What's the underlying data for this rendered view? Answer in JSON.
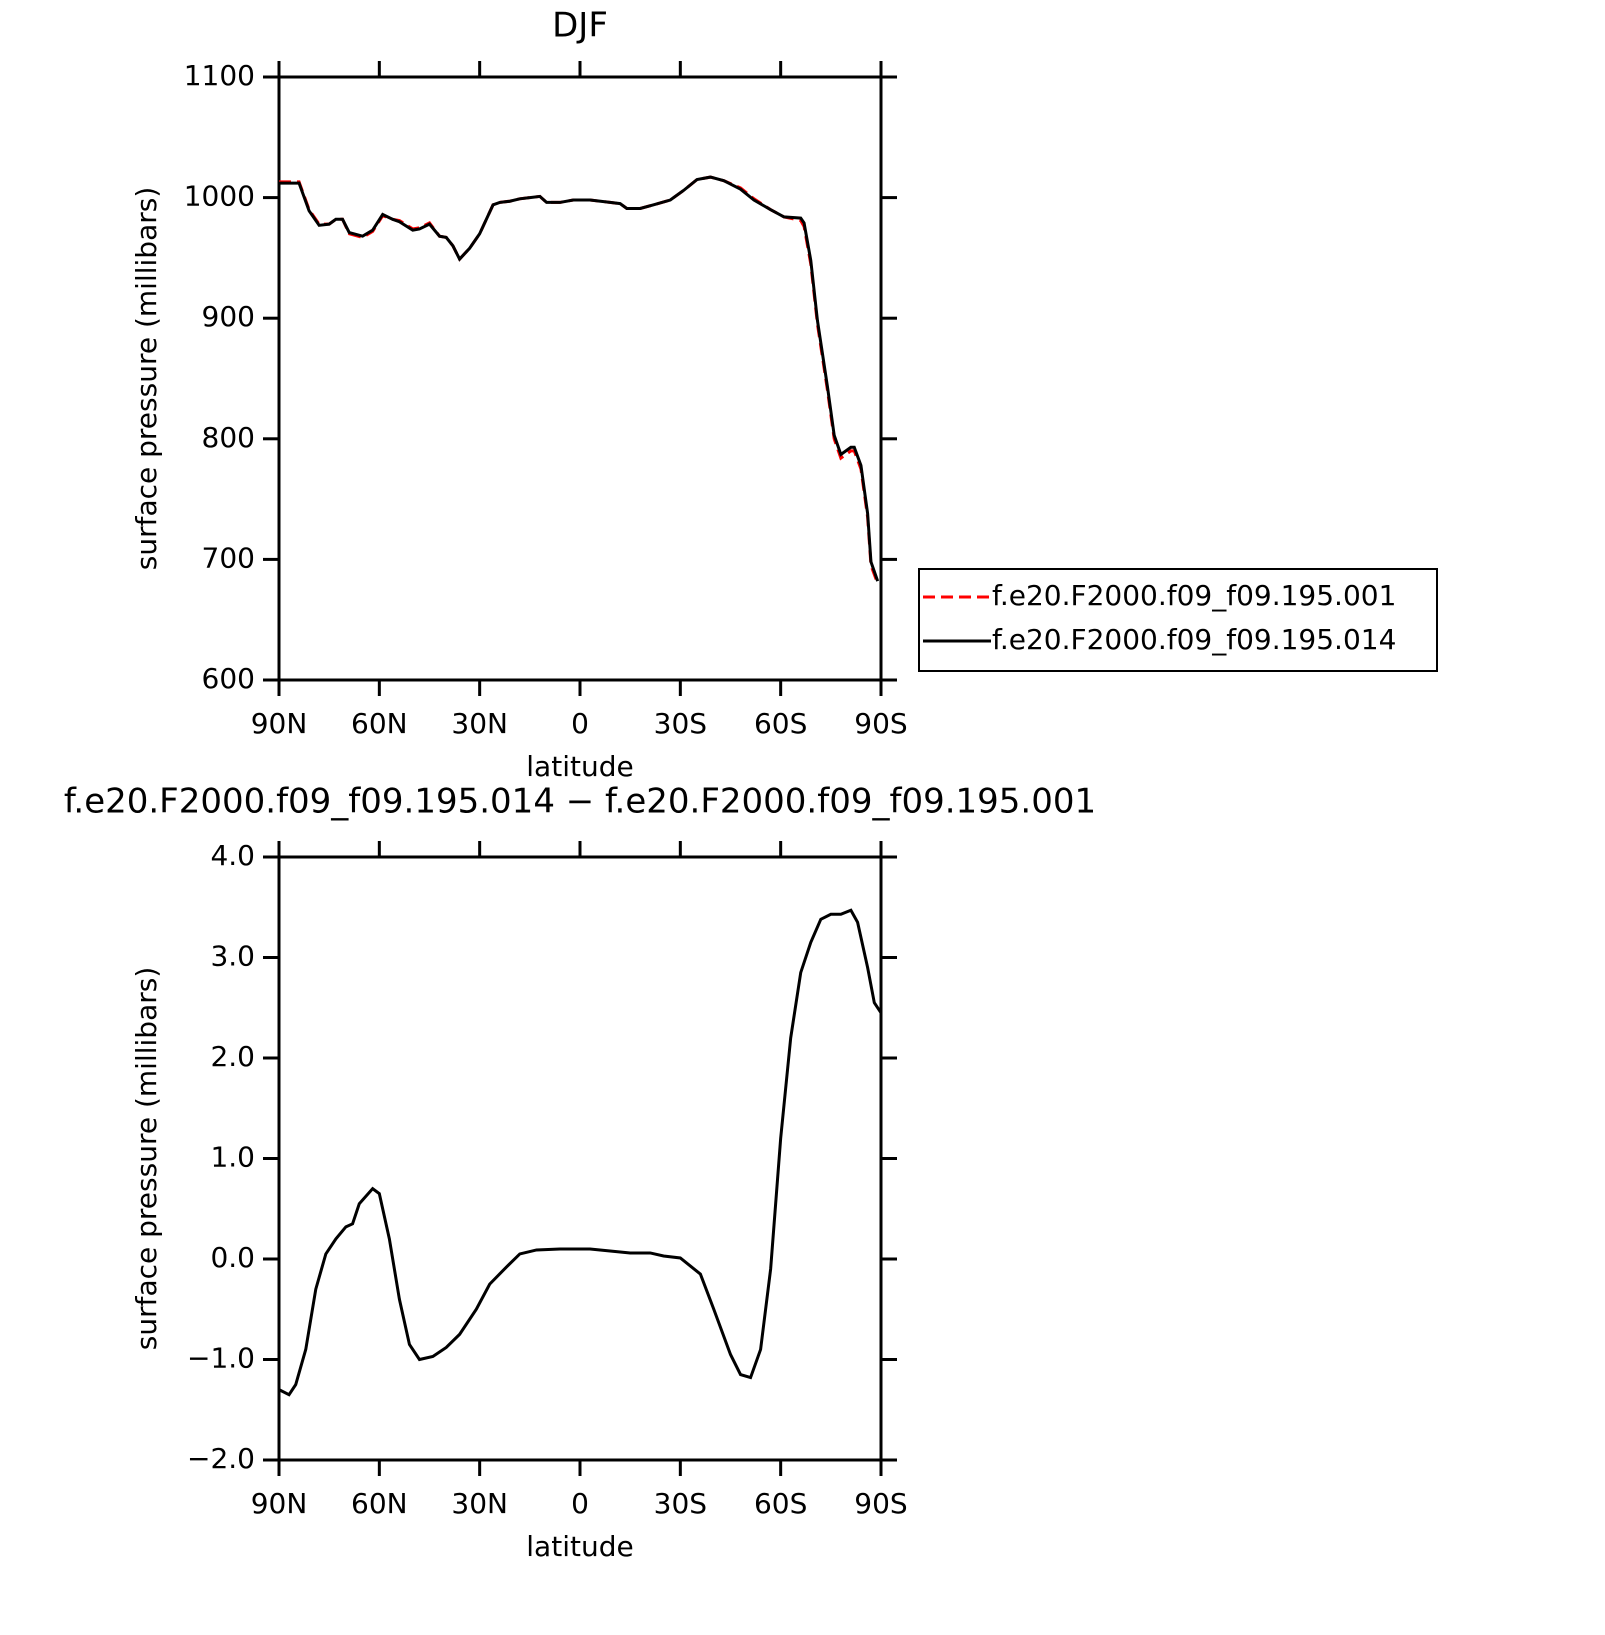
{
  "chart_data": [
    {
      "type": "line",
      "title": "DJF",
      "xlabel": "latitude",
      "ylabel": "surface pressure (millibars)",
      "x": [
        90,
        84,
        81,
        78,
        75,
        73,
        71,
        69,
        65,
        62,
        59,
        56,
        54,
        50,
        48,
        45,
        42,
        40,
        38,
        36,
        33,
        30,
        26,
        24,
        21,
        18,
        15,
        12,
        10,
        6,
        2,
        -3,
        -9,
        -12,
        -14,
        -18,
        -22,
        -27,
        -31,
        -35,
        -39,
        -43,
        -48,
        -52,
        -57,
        -61,
        -66,
        -67,
        -69,
        -71,
        -74,
        -76,
        -78,
        -81,
        -82,
        -84,
        -86,
        -87,
        -89
      ],
      "series": [
        {
          "name": "f.e20.F2000.f09_f09.195.001",
          "color": "#ff0000",
          "line_style": "dashed",
          "values": [
            1013,
            1013,
            990,
            978,
            978,
            982,
            982,
            970,
            967,
            972,
            985,
            982,
            981,
            974,
            975,
            979,
            968,
            967,
            960,
            949,
            958,
            970,
            994,
            996,
            997,
            999,
            1000,
            1001,
            996,
            996,
            998,
            998,
            996,
            995,
            991,
            991,
            994,
            998,
            1006,
            1015,
            1017,
            1014,
            1008,
            999,
            990,
            984,
            981,
            976,
            945,
            895,
            840,
            800,
            784,
            790,
            790,
            775,
            735,
            695,
            680
          ]
        },
        {
          "name": "f.e20.F2000.f09_f09.195.014",
          "color": "#000000",
          "line_style": "solid",
          "values": [
            1012,
            1012,
            989,
            977,
            978,
            982,
            982,
            971,
            968,
            973,
            986,
            982,
            980,
            973,
            974,
            978,
            968,
            967,
            960,
            949,
            958,
            970,
            994,
            996,
            997,
            999,
            1000,
            1001,
            996,
            996,
            998,
            998,
            996,
            995,
            991,
            991,
            994,
            998,
            1006,
            1015,
            1017,
            1014,
            1007,
            998,
            990,
            984,
            983,
            979,
            948,
            898,
            843,
            803,
            787,
            793,
            793,
            778,
            738,
            698,
            682
          ]
        }
      ],
      "xlim": [
        90,
        -90
      ],
      "xticks": [
        {
          "value": 90,
          "label": "90N"
        },
        {
          "value": 60,
          "label": "60N"
        },
        {
          "value": 30,
          "label": "30N"
        },
        0,
        {
          "value": -30,
          "label": "30S"
        },
        {
          "value": -60,
          "label": "60S"
        },
        {
          "value": -90,
          "label": "90S"
        }
      ],
      "ylim": [
        600,
        1100
      ],
      "yticks": [
        600,
        700,
        800,
        900,
        1000,
        1100
      ],
      "legend": "right"
    },
    {
      "type": "line",
      "title": "f.e20.F2000.f09_f09.195.014 − f.e20.F2000.f09_f09.195.001",
      "xlabel": "latitude",
      "ylabel": "surface pressure (millibars)",
      "x": [
        90,
        87,
        85,
        82,
        79,
        76,
        73,
        70,
        68,
        66,
        62,
        60,
        57,
        54,
        51,
        48,
        44,
        40,
        36,
        31,
        27,
        22,
        18,
        13,
        6,
        -3,
        -9,
        -15,
        -21,
        -25,
        -30,
        -36,
        -40,
        -45,
        -48,
        -51,
        -54,
        -57,
        -60,
        -63,
        -66,
        -69,
        -72,
        -75,
        -78,
        -81,
        -83,
        -86,
        -88,
        -90
      ],
      "values": [
        -1.3,
        -1.35,
        -1.25,
        -0.9,
        -0.3,
        0.05,
        0.2,
        0.32,
        0.35,
        0.55,
        0.7,
        0.65,
        0.2,
        -0.4,
        -0.85,
        -1.0,
        -0.97,
        -0.88,
        -0.75,
        -0.5,
        -0.25,
        -0.08,
        0.05,
        0.09,
        0.1,
        0.1,
        0.08,
        0.06,
        0.06,
        0.03,
        0.01,
        -0.15,
        -0.5,
        -0.95,
        -1.15,
        -1.18,
        -0.9,
        -0.1,
        1.2,
        2.2,
        2.85,
        3.15,
        3.38,
        3.43,
        3.43,
        3.47,
        3.35,
        2.9,
        2.55,
        2.45
      ],
      "color": "#000000",
      "xlim": [
        90,
        -90
      ],
      "xticks": [
        {
          "value": 90,
          "label": "90N"
        },
        {
          "value": 60,
          "label": "60N"
        },
        {
          "value": 30,
          "label": "30N"
        },
        0,
        {
          "value": -30,
          "label": "30S"
        },
        {
          "value": -60,
          "label": "60S"
        },
        {
          "value": -90,
          "label": "90S"
        }
      ],
      "ylim": [
        -2,
        4
      ],
      "yticks": [
        {
          "value": -2,
          "label": "−2.0"
        },
        {
          "value": -1,
          "label": "−1.0"
        },
        {
          "value": 0,
          "label": "0.0"
        },
        {
          "value": 1,
          "label": "1.0"
        },
        {
          "value": 2,
          "label": "2.0"
        },
        {
          "value": 3,
          "label": "3.0"
        },
        {
          "value": 4,
          "label": "4.0"
        }
      ]
    }
  ]
}
